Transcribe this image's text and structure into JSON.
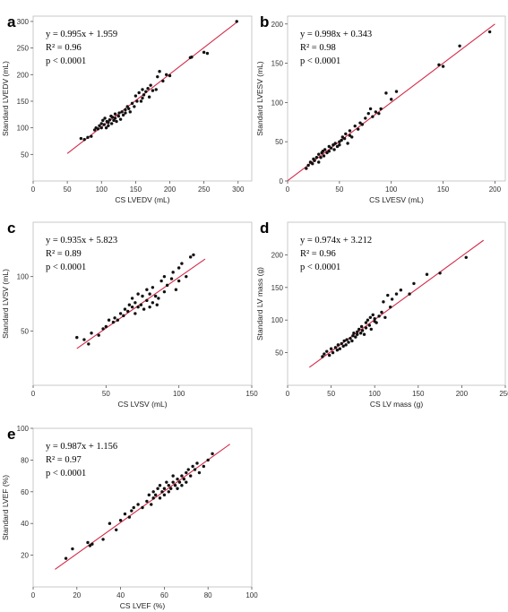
{
  "colors": {
    "fit_line": "#d42a4a",
    "points": "#111111",
    "frame": "#bdbdbd"
  },
  "chart_data": [
    {
      "panel": "a",
      "type": "scatter",
      "xlabel": "CS LVEDV (mL)",
      "ylabel": "Standard LVEDV (mL)",
      "xlim": [
        0,
        320
      ],
      "ylim": [
        0,
        310
      ],
      "xticks": [
        0,
        50,
        100,
        150,
        200,
        250,
        300
      ],
      "yticks": [
        50,
        100,
        150,
        200,
        250,
        300
      ],
      "stats": [
        "y = 0.995x + 1.959",
        "R² = 0.96",
        "p < 0.0001"
      ],
      "fit": {
        "slope": 0.995,
        "intercept": 1.959,
        "x_range": [
          50,
          300
        ]
      },
      "x": [
        70,
        75,
        80,
        85,
        90,
        92,
        95,
        97,
        100,
        100,
        102,
        104,
        105,
        107,
        108,
        110,
        110,
        112,
        114,
        115,
        116,
        118,
        120,
        120,
        122,
        125,
        126,
        128,
        130,
        132,
        135,
        135,
        138,
        140,
        142,
        145,
        148,
        150,
        152,
        155,
        158,
        160,
        160,
        162,
        165,
        168,
        170,
        172,
        175,
        180,
        182,
        185,
        190,
        195,
        200,
        230,
        232,
        250,
        255,
        298
      ],
      "y": [
        80,
        78,
        82,
        84,
        96,
        100,
        98,
        104,
        100,
        108,
        114,
        106,
        118,
        100,
        112,
        110,
        104,
        115,
        122,
        108,
        120,
        114,
        118,
        126,
        112,
        122,
        128,
        116,
        130,
        124,
        134,
        128,
        140,
        136,
        130,
        146,
        140,
        160,
        150,
        166,
        150,
        156,
        172,
        162,
        168,
        174,
        158,
        180,
        170,
        172,
        196,
        206,
        188,
        200,
        198,
        232,
        233,
        242,
        240,
        300
      ]
    },
    {
      "panel": "b",
      "type": "scatter",
      "xlabel": "CS LVESV (mL)",
      "ylabel": "Standard LVESV (mL)",
      "xlim": [
        0,
        210
      ],
      "ylim": [
        0,
        210
      ],
      "xticks": [
        0,
        50,
        100,
        150,
        200
      ],
      "yticks": [
        0,
        50,
        100,
        150,
        200
      ],
      "stats": [
        "y = 0.998x + 0.343",
        "R² = 0.98",
        "p < 0.0001"
      ],
      "fit": {
        "slope": 0.998,
        "intercept": 0.343,
        "x_range": [
          0,
          200
        ]
      },
      "x": [
        18,
        20,
        22,
        24,
        25,
        26,
        28,
        30,
        30,
        32,
        33,
        34,
        35,
        36,
        38,
        40,
        40,
        42,
        44,
        45,
        46,
        48,
        50,
        50,
        52,
        53,
        55,
        56,
        58,
        60,
        60,
        62,
        65,
        68,
        70,
        72,
        75,
        78,
        80,
        82,
        85,
        88,
        90,
        95,
        100,
        105,
        146,
        150,
        166,
        195
      ],
      "y": [
        16,
        20,
        24,
        22,
        28,
        26,
        30,
        24,
        34,
        30,
        36,
        38,
        32,
        40,
        36,
        44,
        38,
        42,
        46,
        40,
        48,
        44,
        50,
        46,
        52,
        56,
        54,
        60,
        48,
        58,
        64,
        56,
        70,
        66,
        74,
        72,
        80,
        86,
        92,
        82,
        88,
        86,
        92,
        112,
        104,
        114,
        148,
        146,
        172,
        190
      ]
    },
    {
      "panel": "c",
      "type": "scatter",
      "xlabel": "CS LVSV (mL)",
      "ylabel": "Standard LVSV (mL)",
      "xlim": [
        0,
        150
      ],
      "ylim": [
        0,
        150
      ],
      "xticks": [
        0,
        50,
        100,
        150
      ],
      "yticks": [
        50,
        100
      ],
      "stats": [
        "y = 0.935x + 5.823",
        "R² = 0.89",
        "p < 0.0001"
      ],
      "fit": {
        "slope": 0.935,
        "intercept": 5.823,
        "x_range": [
          30,
          118
        ]
      },
      "x": [
        30,
        35,
        38,
        40,
        45,
        48,
        50,
        52,
        55,
        56,
        58,
        60,
        62,
        63,
        65,
        66,
        68,
        68,
        70,
        70,
        72,
        72,
        74,
        75,
        76,
        78,
        78,
        80,
        80,
        82,
        82,
        84,
        85,
        86,
        88,
        90,
        90,
        92,
        95,
        96,
        98,
        100,
        100,
        102,
        105,
        108,
        110
      ],
      "y": [
        44,
        42,
        38,
        48,
        46,
        52,
        54,
        60,
        58,
        62,
        60,
        66,
        64,
        70,
        68,
        74,
        72,
        80,
        66,
        76,
        84,
        72,
        74,
        82,
        70,
        78,
        88,
        72,
        84,
        76,
        90,
        82,
        74,
        80,
        96,
        86,
        100,
        92,
        98,
        104,
        88,
        108,
        96,
        112,
        100,
        118,
        120
      ]
    },
    {
      "panel": "d",
      "type": "scatter",
      "xlabel": "CS LV mass (g)",
      "ylabel": "Standard LV mass (g)",
      "xlim": [
        0,
        250
      ],
      "ylim": [
        0,
        250
      ],
      "xticks": [
        0,
        50,
        100,
        150,
        200,
        250
      ],
      "yticks": [
        50,
        100,
        150,
        200
      ],
      "stats": [
        "y = 0.974x + 3.212",
        "R² = 0.96",
        "p < 0.0001"
      ],
      "fit": {
        "slope": 0.974,
        "intercept": 3.212,
        "x_range": [
          25,
          225
        ]
      },
      "x": [
        40,
        42,
        45,
        48,
        50,
        52,
        55,
        57,
        58,
        60,
        62,
        64,
        65,
        67,
        68,
        70,
        72,
        74,
        75,
        76,
        78,
        80,
        80,
        82,
        84,
        85,
        86,
        88,
        90,
        90,
        92,
        94,
        95,
        96,
        98,
        100,
        100,
        102,
        105,
        108,
        110,
        112,
        115,
        118,
        120,
        125,
        130,
        140,
        145,
        160,
        175,
        205
      ],
      "y": [
        44,
        48,
        52,
        46,
        56,
        50,
        58,
        54,
        62,
        56,
        64,
        60,
        68,
        62,
        70,
        66,
        72,
        68,
        76,
        80,
        74,
        82,
        78,
        86,
        80,
        90,
        84,
        78,
        96,
        88,
        100,
        92,
        104,
        86,
        108,
        98,
        102,
        96,
        106,
        112,
        128,
        104,
        138,
        120,
        132,
        140,
        146,
        140,
        156,
        170,
        172,
        196
      ]
    },
    {
      "panel": "e",
      "type": "scatter",
      "xlabel": "CS LVEF (%)",
      "ylabel": "Standard LVEF (%)",
      "xlim": [
        0,
        100
      ],
      "ylim": [
        0,
        100
      ],
      "xticks": [
        0,
        20,
        40,
        60,
        80,
        100
      ],
      "yticks": [
        20,
        40,
        60,
        80,
        100
      ],
      "stats": [
        "y = 0.987x + 1.156",
        "R² = 0.97",
        "p < 0.0001"
      ],
      "fit": {
        "slope": 0.987,
        "intercept": 1.156,
        "x_range": [
          10,
          90
        ]
      },
      "x": [
        15,
        18,
        25,
        26,
        27,
        32,
        35,
        38,
        40,
        42,
        44,
        45,
        46,
        48,
        50,
        52,
        53,
        54,
        55,
        55,
        56,
        57,
        58,
        58,
        59,
        60,
        60,
        61,
        62,
        62,
        63,
        64,
        64,
        65,
        66,
        66,
        67,
        68,
        68,
        69,
        70,
        70,
        71,
        72,
        73,
        74,
        75,
        76,
        78,
        80,
        82
      ],
      "y": [
        18,
        24,
        28,
        26,
        27,
        30,
        40,
        36,
        42,
        46,
        44,
        48,
        50,
        52,
        50,
        54,
        58,
        52,
        56,
        60,
        58,
        62,
        56,
        64,
        60,
        62,
        58,
        66,
        60,
        64,
        62,
        66,
        70,
        64,
        68,
        62,
        66,
        70,
        64,
        68,
        72,
        66,
        74,
        70,
        76,
        74,
        78,
        72,
        76,
        80,
        84
      ]
    }
  ]
}
